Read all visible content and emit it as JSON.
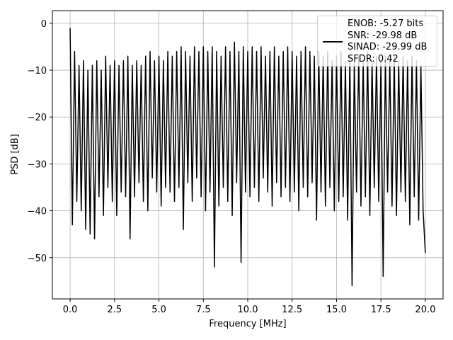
{
  "chart_data": {
    "type": "line",
    "xlabel": "Frequency [MHz]",
    "ylabel": "PSD [dB]",
    "xlim": [
      -1,
      21
    ],
    "ylim": [
      -58.8,
      2.7
    ],
    "xticks": [
      {
        "value": 0,
        "label": "0.0"
      },
      {
        "value": 2.5,
        "label": "2.5"
      },
      {
        "value": 5,
        "label": "5.0"
      },
      {
        "value": 7.5,
        "label": "7.5"
      },
      {
        "value": 10,
        "label": "10.0"
      },
      {
        "value": 12.5,
        "label": "12.5"
      },
      {
        "value": 15,
        "label": "15.0"
      },
      {
        "value": 17.5,
        "label": "17.5"
      },
      {
        "value": 20,
        "label": "20.0"
      }
    ],
    "yticks": [
      {
        "value": -50,
        "label": "−50"
      },
      {
        "value": -40,
        "label": "−40"
      },
      {
        "value": -30,
        "label": "−30"
      },
      {
        "value": -20,
        "label": "−20"
      },
      {
        "value": -10,
        "label": "−10"
      },
      0
    ],
    "grid": true,
    "legend": "upper right",
    "x": [
      0,
      0.125,
      0.25,
      0.375,
      0.5,
      0.625,
      0.75,
      0.875,
      1,
      1.125,
      1.25,
      1.375,
      1.5,
      1.625,
      1.75,
      1.875,
      2,
      2.125,
      2.25,
      2.375,
      2.5,
      2.625,
      2.75,
      2.875,
      3,
      3.125,
      3.25,
      3.375,
      3.5,
      3.625,
      3.75,
      3.875,
      4,
      4.125,
      4.25,
      4.375,
      4.5,
      4.625,
      4.75,
      4.875,
      5,
      5.125,
      5.25,
      5.375,
      5.5,
      5.625,
      5.75,
      5.875,
      6,
      6.125,
      6.25,
      6.375,
      6.5,
      6.625,
      6.75,
      6.875,
      7,
      7.125,
      7.25,
      7.375,
      7.5,
      7.625,
      7.75,
      7.875,
      8,
      8.125,
      8.25,
      8.375,
      8.5,
      8.625,
      8.75,
      8.875,
      9,
      9.125,
      9.25,
      9.375,
      9.5,
      9.625,
      9.75,
      9.875,
      10,
      10.125,
      10.25,
      10.375,
      10.5,
      10.625,
      10.75,
      10.875,
      11,
      11.125,
      11.25,
      11.375,
      11.5,
      11.625,
      11.75,
      11.875,
      12,
      12.125,
      12.25,
      12.375,
      12.5,
      12.625,
      12.75,
      12.875,
      13,
      13.125,
      13.25,
      13.375,
      13.5,
      13.625,
      13.75,
      13.875,
      14,
      14.125,
      14.25,
      14.375,
      14.5,
      14.625,
      14.75,
      14.875,
      15,
      15.125,
      15.25,
      15.375,
      15.5,
      15.625,
      15.75,
      15.875,
      16,
      16.125,
      16.25,
      16.375,
      16.5,
      16.625,
      16.75,
      16.875,
      17,
      17.125,
      17.25,
      17.375,
      17.5,
      17.625,
      17.75,
      17.875,
      18,
      18.125,
      18.25,
      18.375,
      18.5,
      18.625,
      18.75,
      18.875,
      19,
      19.125,
      19.25,
      19.375,
      19.5,
      19.625,
      19.75,
      19.875,
      20
    ],
    "series": [
      {
        "name": "ENOB: -5.27 bits\nSNR: -29.98 dB\nSINAD: -29.99 dB\nSFDR: 0.42",
        "color": "#000000",
        "values": [
          -1,
          -43,
          -6,
          -38,
          -9,
          -40,
          -8,
          -44,
          -10,
          -45,
          -9,
          -46,
          -8,
          -37,
          -10,
          -41,
          -7,
          -35,
          -9,
          -38,
          -8,
          -41,
          -9,
          -36,
          -8,
          -37,
          -7,
          -46,
          -9,
          -37,
          -8,
          -34,
          -9,
          -38,
          -7,
          -40,
          -6,
          -33,
          -8,
          -36,
          -7,
          -39,
          -8,
          -35,
          -6,
          -36,
          -7,
          -38,
          -6,
          -35,
          -5,
          -44,
          -6,
          -34,
          -7,
          -38,
          -5,
          -33,
          -6,
          -37,
          -5,
          -40,
          -6,
          -36,
          -5,
          -52,
          -6,
          -39,
          -7,
          -35,
          -5,
          -38,
          -6,
          -41,
          -4,
          -34,
          -6,
          -51,
          -5,
          -36,
          -6,
          -37,
          -5,
          -35,
          -6,
          -38,
          -5,
          -33,
          -7,
          -36,
          -6,
          -39,
          -5,
          -34,
          -7,
          -37,
          -6,
          -35,
          -5,
          -38,
          -6,
          -36,
          -7,
          -40,
          -6,
          -35,
          -5,
          -37,
          -6,
          -34,
          -7,
          -42,
          -6,
          -36,
          -7,
          -39,
          -6,
          -35,
          -8,
          -40,
          -7,
          -38,
          -6,
          -37,
          -8,
          -42,
          -7,
          -56,
          -8,
          -36,
          -7,
          -39,
          -8,
          -37,
          -6,
          -41,
          -8,
          -35,
          -7,
          -38,
          -8,
          -54,
          -7,
          -36,
          -8,
          -39,
          -7,
          -41,
          -8,
          -36,
          -7,
          -38,
          -8,
          -43,
          -7,
          -37,
          -8,
          -42,
          -9,
          -40,
          -49
        ]
      }
    ]
  }
}
